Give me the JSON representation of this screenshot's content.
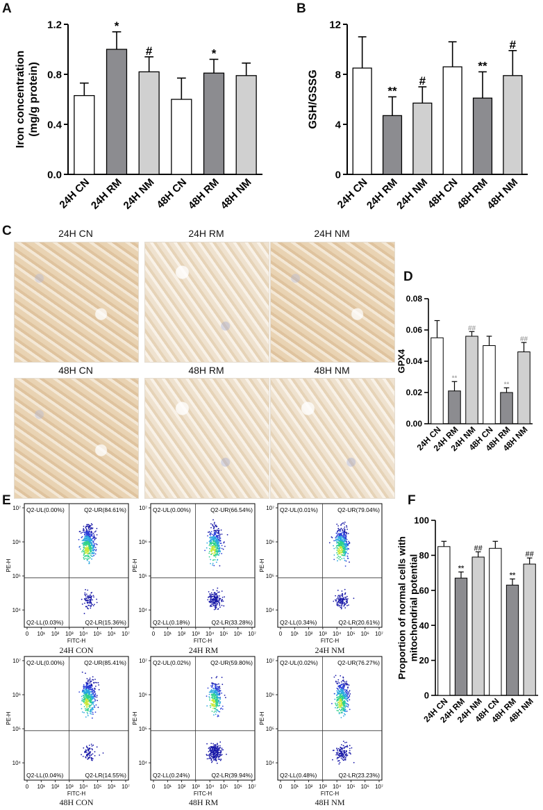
{
  "panels": {
    "A": "A",
    "B": "B",
    "C": "C",
    "D": "D",
    "E": "E",
    "F": "F"
  },
  "images": {
    "row1": [
      "24H CN",
      "24H RM",
      "24H NM"
    ],
    "row2": [
      "48H CN",
      "48H RM",
      "48H NM"
    ]
  },
  "flow_captions": [
    "24H CON",
    "24H RM",
    "24H NM",
    "48H CON",
    "48H RM",
    "48H NM"
  ],
  "colors": {
    "cn": "#ffffff",
    "rm": "#8c8c90",
    "nm": "#d0d0d0"
  },
  "chart_data": [
    {
      "id": "A",
      "type": "bar",
      "categories": [
        "24H CN",
        "24H RM",
        "24H NM",
        "48H CN",
        "48H RM",
        "48H NM"
      ],
      "values": [
        0.63,
        1.0,
        0.82,
        0.6,
        0.81,
        0.79
      ],
      "errors": [
        0.1,
        0.14,
        0.12,
        0.17,
        0.11,
        0.1
      ],
      "annotations": [
        "",
        "*",
        "#",
        "",
        "*",
        ""
      ],
      "ylabel": "Iron concentration\n(mg/g protein)",
      "ylim": [
        0,
        1.2
      ],
      "yticks": [
        "0.0",
        "0.4",
        "0.8",
        "1.2"
      ]
    },
    {
      "id": "B",
      "type": "bar",
      "categories": [
        "24H CN",
        "24H RM",
        "24H NM",
        "48H CN",
        "48H RM",
        "48H NM"
      ],
      "values": [
        8.5,
        4.7,
        5.7,
        8.6,
        6.1,
        7.9
      ],
      "errors": [
        2.5,
        1.5,
        1.3,
        2.0,
        2.1,
        2.0
      ],
      "annotations": [
        "",
        "**",
        "#",
        "",
        "**",
        "#"
      ],
      "ylabel": "GSH/GSSG",
      "ylim": [
        0,
        12
      ],
      "yticks": [
        "0",
        "4",
        "8",
        "12"
      ]
    },
    {
      "id": "D",
      "type": "bar",
      "categories": [
        "24H CN",
        "24H RM",
        "24H NM",
        "48H CN",
        "48H RM",
        "48H NM"
      ],
      "values": [
        0.055,
        0.021,
        0.056,
        0.05,
        0.02,
        0.046
      ],
      "errors": [
        0.011,
        0.006,
        0.003,
        0.006,
        0.003,
        0.006
      ],
      "annotations": [
        "",
        "**",
        "##",
        "",
        "**",
        "##"
      ],
      "ylabel": "GPX4",
      "ylim": [
        0,
        0.08
      ],
      "yticks": [
        "0.00",
        "0.02",
        "0.04",
        "0.06",
        "0.08"
      ]
    },
    {
      "id": "F",
      "type": "bar",
      "categories": [
        "24H CN",
        "24H RM",
        "24H NM",
        "48H CN",
        "48H RM",
        "48H NM"
      ],
      "values": [
        85,
        67,
        79,
        84,
        63,
        75
      ],
      "errors": [
        3,
        3.5,
        3,
        4,
        3.5,
        3.5
      ],
      "annotations": [
        "",
        "**",
        "##",
        "",
        "**",
        "##"
      ],
      "ylabel": "Proportion of normal cells with\nmitochondrial potential",
      "ylim": [
        0,
        100
      ],
      "yticks": [
        "0",
        "20",
        "40",
        "60",
        "80",
        "100"
      ]
    },
    {
      "id": "E",
      "type": "scatter",
      "xlabel": "FITC-H",
      "ylabel": "PE-H",
      "x_ticks": [
        "0",
        "10¹",
        "10²",
        "10³",
        "10⁴",
        "10⁵",
        "10⁶",
        "10⁷"
      ],
      "y_ticks": [
        "10⁴",
        "10⁵",
        "10⁶",
        "10⁷"
      ],
      "plots": [
        {
          "name": "24H CON",
          "UL": "Q2-UL(0.00%)",
          "UR": "Q2-UR(84.61%)",
          "LL": "Q2-LL(0.03%)",
          "LR": "Q2-LR(15.36%)",
          "ur_frac": 0.8461
        },
        {
          "name": "24H RM",
          "UL": "Q2-UL(0.00%)",
          "UR": "Q2-UR(66.54%)",
          "LL": "Q2-LL(0.18%)",
          "LR": "Q2-LR(33.28%)",
          "ur_frac": 0.6654
        },
        {
          "name": "24H NM",
          "UL": "Q2-UL(0.01%)",
          "UR": "Q2-UR(79.04%)",
          "LL": "Q2-LL(0.34%)",
          "LR": "Q2-LR(20.61%)",
          "ur_frac": 0.7904
        },
        {
          "name": "48H CON",
          "UL": "Q2-UL(0.00%)",
          "UR": "Q2-UR(85.41%)",
          "LL": "Q2-LL(0.04%)",
          "LR": "Q2-LR(14.55%)",
          "ur_frac": 0.8541
        },
        {
          "name": "48H RM",
          "UL": "Q2-UL(0.02%)",
          "UR": "Q2-UR(59.80%)",
          "LL": "Q2-LL(0.24%)",
          "LR": "Q2-LR(39.94%)",
          "ur_frac": 0.598
        },
        {
          "name": "48H NM",
          "UL": "Q2-UL(0.02%)",
          "UR": "Q2-UR(76.27%)",
          "LL": "Q2-LL(0.48%)",
          "LR": "Q2-LR(23.23%)",
          "ur_frac": 0.7627
        }
      ]
    }
  ]
}
